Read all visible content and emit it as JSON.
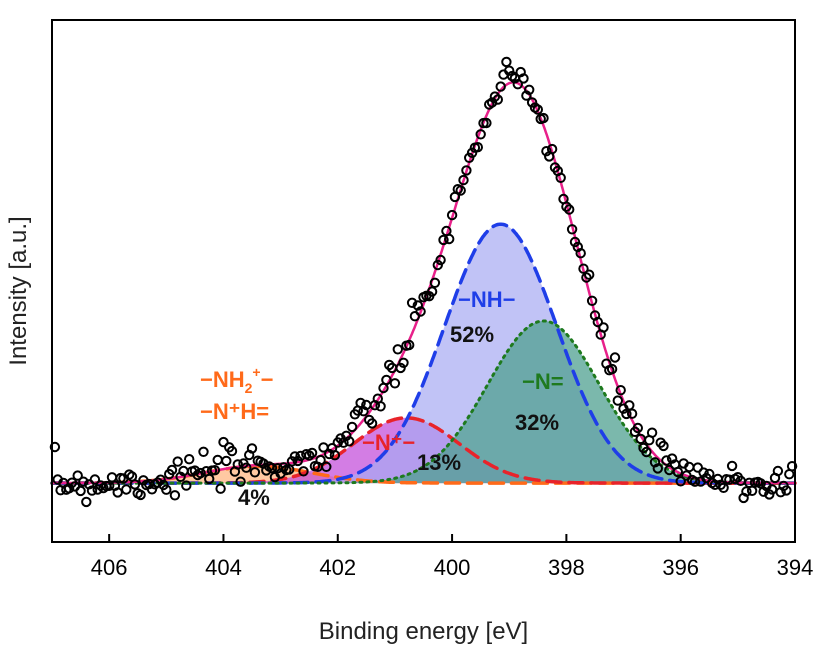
{
  "chart_data": {
    "type": "line",
    "xlabel": "Binding energy [eV]",
    "ylabel": "Intensity [a.u.]",
    "xlim": [
      407,
      394
    ],
    "ylim": [
      -0.12,
      1.12
    ],
    "x_ticks": [
      "406",
      "404",
      "402",
      "400",
      "398",
      "396",
      "394"
    ],
    "x_tick_values": [
      406,
      404,
      402,
      400,
      398,
      396,
      394
    ],
    "grid": false,
    "legend": "none",
    "background": 0.02,
    "components": [
      {
        "center": 403.4,
        "height": 0.04,
        "width": 0.95,
        "color": "#ff6a1a",
        "fill": "#ffb27a",
        "line": "dashed"
      },
      {
        "center": 400.8,
        "height": 0.155,
        "width": 0.92,
        "color": "#e8232a",
        "fill": "#c046d8",
        "line": "dashed"
      },
      {
        "center": 399.15,
        "height": 0.615,
        "width": 0.98,
        "color": "#1f3ee8",
        "fill": "#a6a9f2",
        "line": "dashed"
      },
      {
        "center": 398.4,
        "height": 0.385,
        "width": 0.98,
        "color": "#1e7a1e",
        "fill": "#4fa090",
        "line": "dotted"
      }
    ],
    "envelope": {
      "color": "#e8208a"
    },
    "measured_points": {
      "marker": "open-circle",
      "color": "#000000",
      "x_start": 406.95,
      "x_end": 394.05,
      "step": 0.05
    },
    "annotations": [
      {
        "id": "nh2",
        "color": "#ff6a1a"
      },
      {
        "id": "nph",
        "text": "−N⁺H=",
        "color": "#ff6a1a"
      },
      {
        "id": "pct4",
        "text": "4%",
        "color": "#111111"
      },
      {
        "id": "np",
        "text": "−N⁺−",
        "color": "#e8232a"
      },
      {
        "id": "pct13",
        "text": "13%",
        "color": "#111111"
      },
      {
        "id": "nh",
        "text": "−NH−",
        "color": "#1f3ee8"
      },
      {
        "id": "pct52",
        "text": "52%",
        "color": "#111111"
      },
      {
        "id": "ndbl",
        "text": "−N=",
        "color": "#1e7a1e"
      },
      {
        "id": "pct32",
        "text": "32%",
        "color": "#111111"
      }
    ],
    "nh2_label": {
      "prefix": "−NH",
      "sub": "2",
      "sup": "+",
      "suffix": "−"
    }
  }
}
